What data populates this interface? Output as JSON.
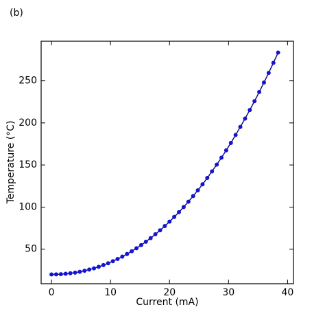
{
  "chart_data": {
    "type": "line",
    "annotation": "(b)",
    "xlabel": "Current (mA)",
    "ylabel": "Temperature (°C)",
    "x": [
      0,
      0.8,
      1.6,
      2.4,
      3.2,
      4.0,
      4.8,
      5.6,
      6.4,
      7.2,
      8.0,
      8.8,
      9.6,
      10.4,
      11.2,
      12.0,
      12.8,
      13.6,
      14.4,
      15.2,
      16.0,
      16.8,
      17.6,
      18.4,
      19.2,
      20.0,
      20.8,
      21.6,
      22.4,
      23.2,
      24.0,
      24.8,
      25.6,
      26.4,
      27.2,
      28.0,
      28.8,
      29.6,
      30.4,
      31.2,
      32.0,
      32.8,
      33.6,
      34.4,
      35.2,
      36.0,
      36.8,
      37.6,
      38.4
    ],
    "series": [
      {
        "color": "#1414d2",
        "values": [
          20,
          20.1,
          20.3,
          20.8,
          21.4,
          22.2,
          23.2,
          24.4,
          25.8,
          27.3,
          29.1,
          31.1,
          33.3,
          35.7,
          38.4,
          41.2,
          44.3,
          47.6,
          51.1,
          54.9,
          58.9,
          63.2,
          67.7,
          72.4,
          77.5,
          82.7,
          88.3,
          94.0,
          100.1,
          106.4,
          113.1,
          120.0,
          127.1,
          134.6,
          142.4,
          150.4,
          158.7,
          167.4,
          176.3,
          185.6,
          195.2,
          205.1,
          215.3,
          225.8,
          236.7,
          247.9,
          259.4,
          271.3,
          283.5
        ]
      }
    ],
    "xlim": [
      -1.75,
      41
    ],
    "xticks": [
      0,
      10,
      20,
      30,
      40
    ],
    "ylim": [
      9,
      297
    ],
    "yticks": [
      50,
      100,
      150,
      200,
      250
    ]
  }
}
